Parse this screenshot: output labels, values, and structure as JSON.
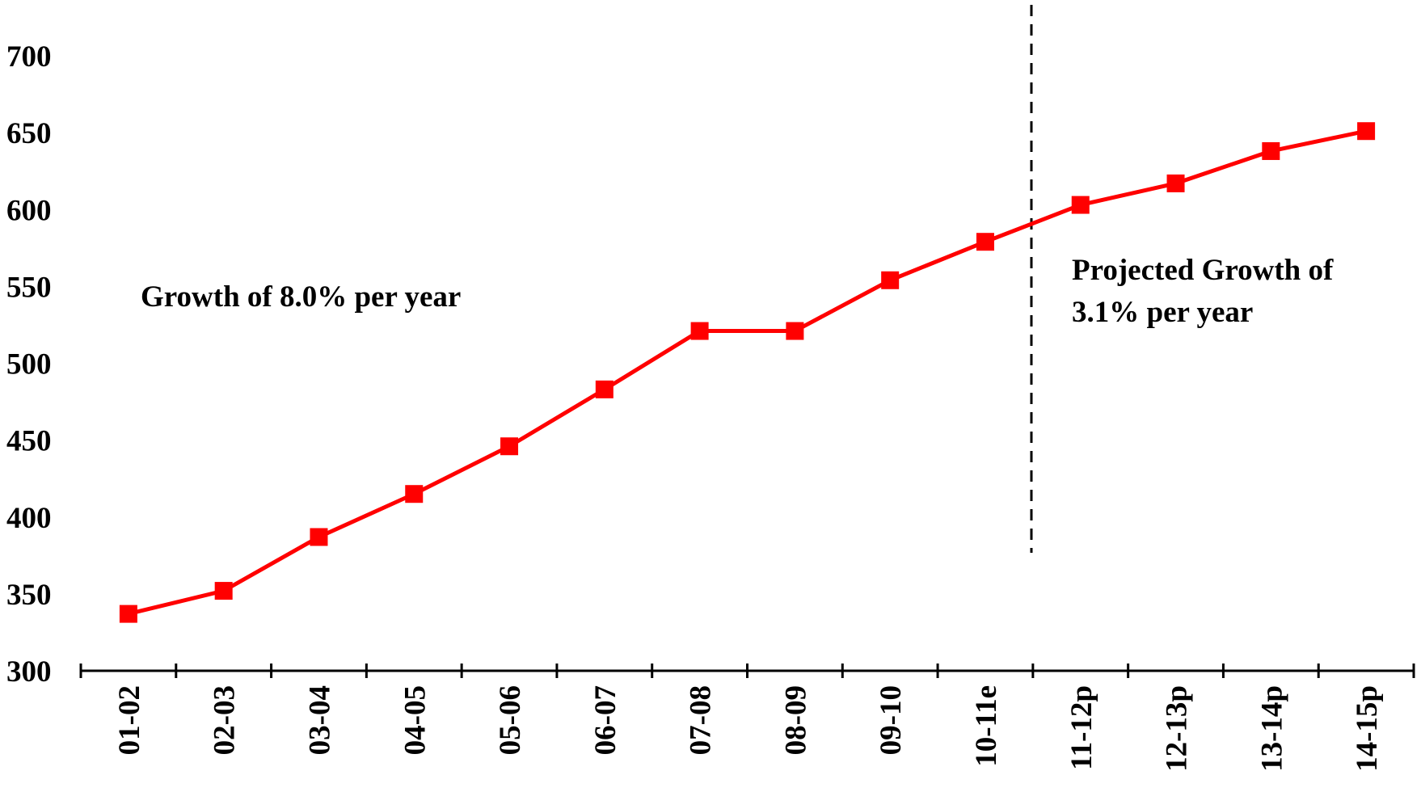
{
  "chart_data": {
    "type": "line",
    "categories": [
      "01-02",
      "02-03",
      "03-04",
      "04-05",
      "05-06",
      "06-07",
      "07-08",
      "08-09",
      "09-10",
      "10-11e",
      "11-12p",
      "12-13p",
      "13-14p",
      "14-15p"
    ],
    "series": [
      {
        "color": "#ff0000",
        "values": [
          337,
          352,
          387,
          415,
          446,
          483,
          521,
          521,
          554,
          579,
          603,
          617,
          638,
          651
        ]
      }
    ],
    "ylim": [
      300,
      700
    ],
    "yticks": [
      300,
      350,
      400,
      450,
      500,
      550,
      600,
      650,
      700
    ],
    "annotations": [
      {
        "lines": [
          "Growth of 8.0% per year"
        ]
      },
      {
        "lines": [
          "Projected Growth of",
          "3.1% per year"
        ]
      }
    ]
  }
}
